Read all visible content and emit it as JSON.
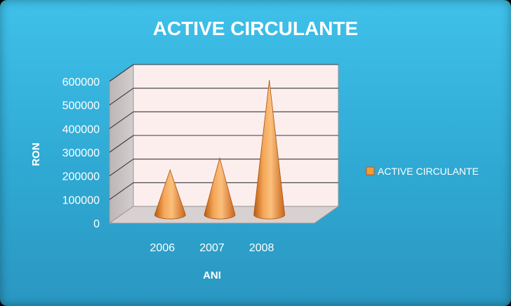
{
  "chart_data": {
    "type": "bar",
    "shape": "cone",
    "three_d": true,
    "title": "ACTIVE CIRCULANTE",
    "xlabel": "ANI",
    "ylabel": "RON",
    "categories": [
      "2006",
      "2007",
      "2008"
    ],
    "series": [
      {
        "name": "ACTIVE CIRCULANTE",
        "values": [
          190000,
          240000,
          570000
        ],
        "color": "#f59a3a"
      }
    ],
    "ylim": [
      0,
      600000
    ],
    "yticks": [
      "0",
      "100000",
      "200000",
      "300000",
      "400000",
      "500000",
      "600000"
    ],
    "grid": true,
    "legend_position": "right",
    "colors": {
      "background": "#3fc1ea",
      "plot_wall": "#fdeeee",
      "side_wall": "#c9c3c3",
      "floor": "#d8d2d2"
    }
  }
}
